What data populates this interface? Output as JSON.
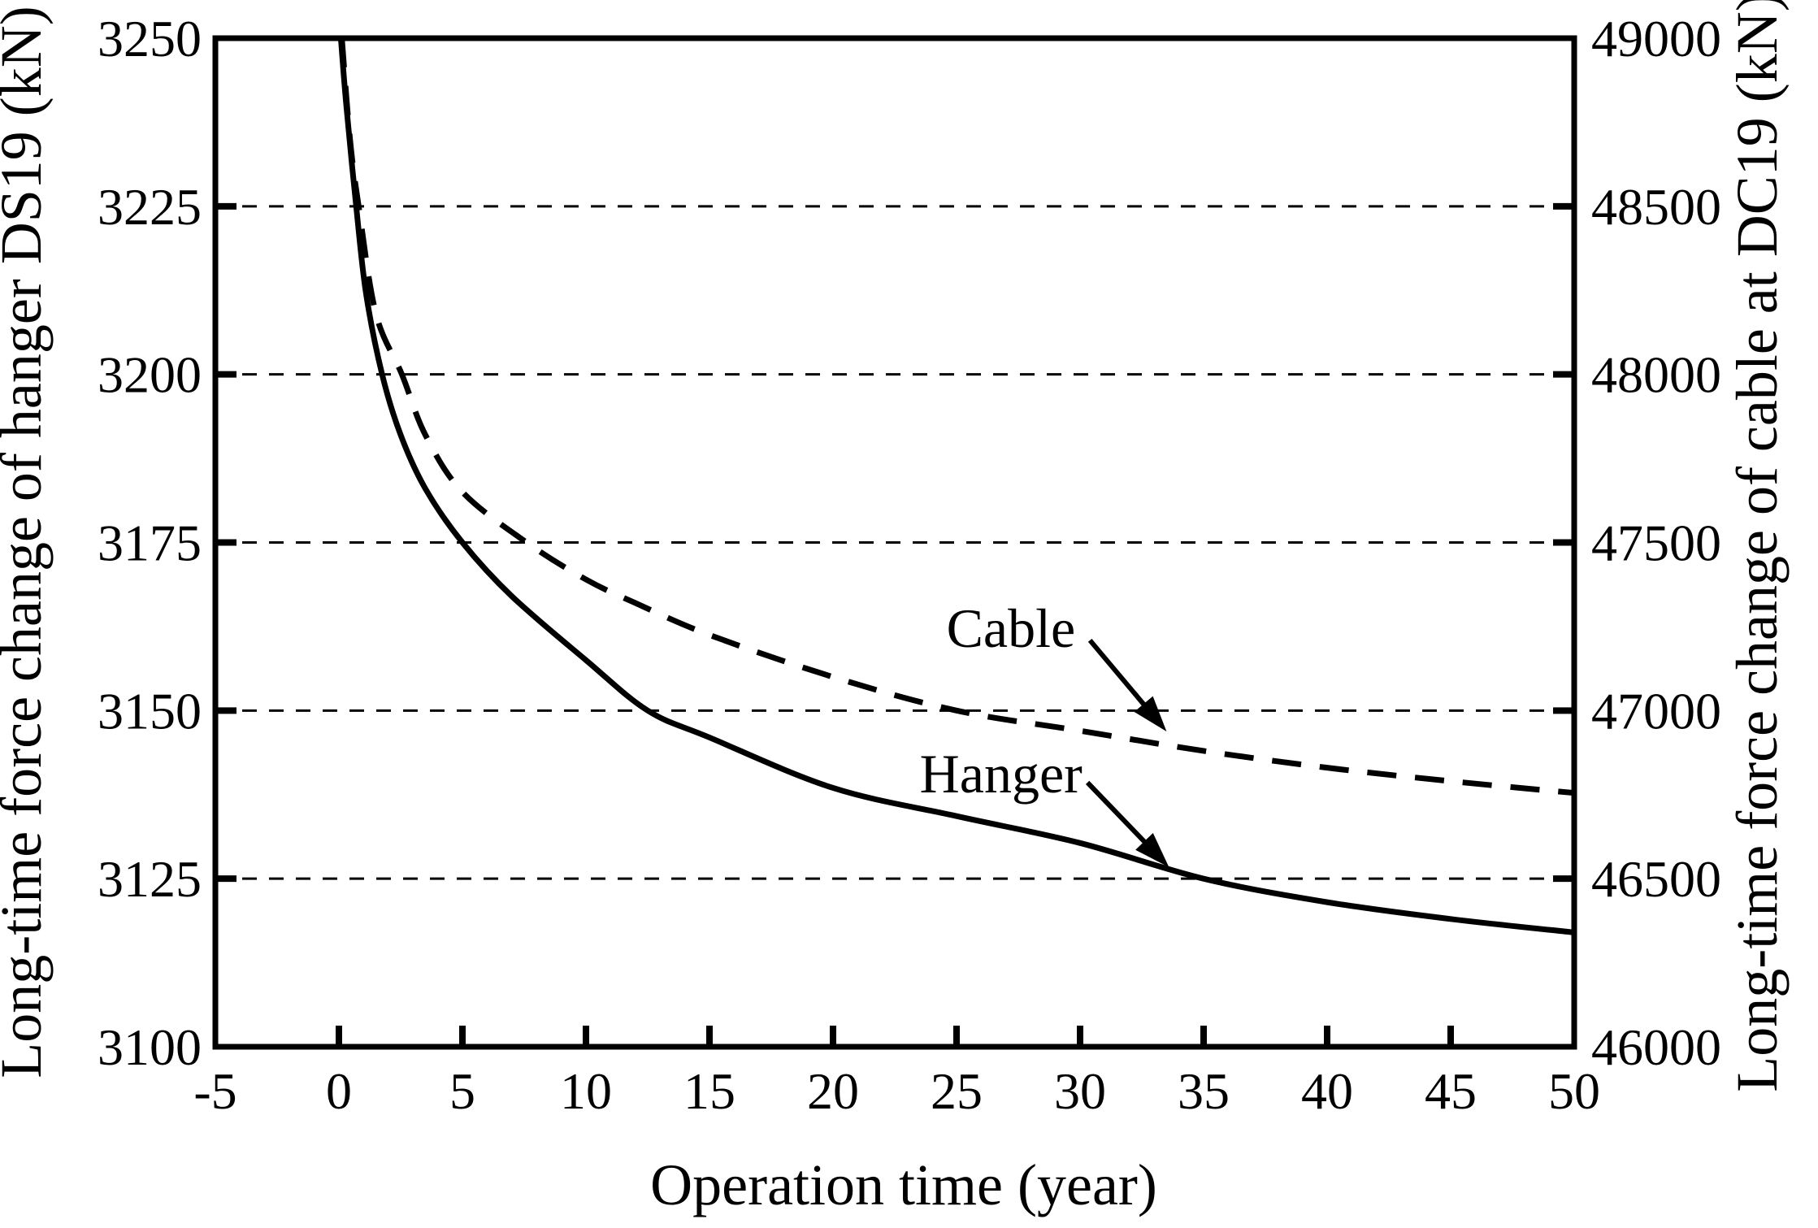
{
  "chart_data": {
    "type": "line",
    "title": "",
    "grid": "horizontal-dashed",
    "legend_position": "none-inline-annotations",
    "x_axis": {
      "label": "Operation time (year)",
      "min": -5,
      "max": 50,
      "tick_labels": [
        -5,
        0,
        5,
        10,
        15,
        20,
        25,
        30,
        35,
        40,
        45,
        50
      ]
    },
    "y_left": {
      "label": "Long-time force change of hanger DS19 (kN)",
      "min": 3100,
      "max": 3250,
      "tick_labels": [
        3250,
        3225,
        3200,
        3175,
        3150,
        3125,
        3100
      ],
      "gridlines": [
        3225,
        3200,
        3175,
        3150,
        3125
      ]
    },
    "y_right": {
      "label": "Long-time force change of cable at DC19 (kN)",
      "min": 46000,
      "max": 49000,
      "tick_labels": [
        49000,
        48500,
        48000,
        47500,
        47000,
        46500,
        46000
      ]
    },
    "series": [
      {
        "name": "Hanger",
        "axis": "left",
        "line_style": "solid",
        "points": [
          [
            0.08,
            3250
          ],
          [
            0.3,
            3240
          ],
          [
            0.7,
            3225
          ],
          [
            1.1,
            3212
          ],
          [
            1.75,
            3200
          ],
          [
            2.5,
            3191
          ],
          [
            3.5,
            3183
          ],
          [
            5,
            3175
          ],
          [
            7,
            3167
          ],
          [
            10,
            3157.5
          ],
          [
            12.5,
            3150
          ],
          [
            15,
            3146
          ],
          [
            20,
            3138.5
          ],
          [
            25,
            3134.3
          ],
          [
            30,
            3130.3
          ],
          [
            35,
            3125
          ],
          [
            40,
            3121.5
          ],
          [
            45,
            3119
          ],
          [
            50,
            3117
          ]
        ]
      },
      {
        "name": "Cable",
        "axis": "right",
        "line_style": "dashed",
        "points": [
          [
            0.12,
            49000
          ],
          [
            0.45,
            48700
          ],
          [
            0.8,
            48500
          ],
          [
            1.5,
            48180
          ],
          [
            2.55,
            48000
          ],
          [
            3.5,
            47820
          ],
          [
            5,
            47650
          ],
          [
            7.6,
            47500
          ],
          [
            10,
            47390
          ],
          [
            12,
            47320
          ],
          [
            15,
            47225
          ],
          [
            20,
            47100
          ],
          [
            25,
            47000
          ],
          [
            30,
            46940
          ],
          [
            35,
            46880
          ],
          [
            40,
            46830
          ],
          [
            45,
            46790
          ],
          [
            50,
            46755
          ]
        ]
      }
    ],
    "annotations": [
      {
        "label": "Cable",
        "axis": "right",
        "text_at": [
          27.2,
          47245
        ],
        "arrow_from": [
          30.4,
          47209
        ],
        "arrow_to": [
          33.5,
          46938
        ]
      },
      {
        "label": "Hanger",
        "axis": "left",
        "text_at": [
          26.8,
          3140.6
        ],
        "arrow_from": [
          30.3,
          3139.3
        ],
        "arrow_to": [
          33.6,
          3126.7
        ]
      }
    ],
    "colors": {
      "foreground": "#000000",
      "background": "#ffffff"
    }
  }
}
